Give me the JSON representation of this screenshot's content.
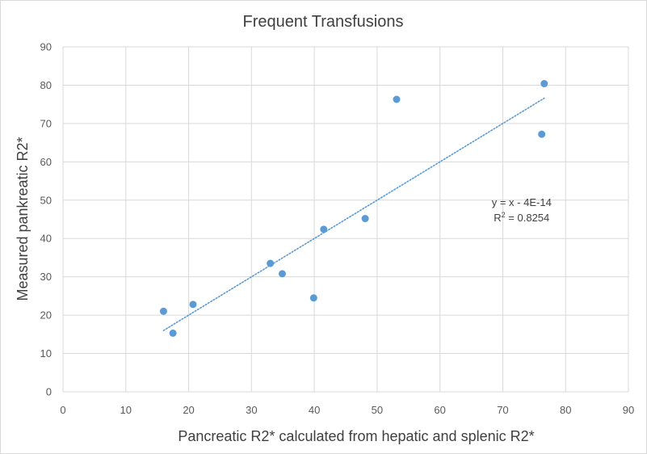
{
  "chart_data": {
    "type": "scatter",
    "title": "Frequent Transfusions",
    "xlabel": "Pancreatic R2* calculated from hepatic and splenic R2*",
    "ylabel": "Measured pankreatic R2*",
    "xlim": [
      0,
      90
    ],
    "ylim": [
      0,
      90
    ],
    "x_ticks": [
      "0",
      "10",
      "20",
      "30",
      "40",
      "50",
      "60",
      "70",
      "80",
      "90"
    ],
    "y_ticks": [
      "0",
      "10",
      "20",
      "30",
      "40",
      "50",
      "60",
      "70",
      "80",
      "90"
    ],
    "grid": true,
    "series": [
      {
        "name": "Frequent Transfusions",
        "color": "#5B9BD5",
        "points": [
          {
            "x": 16.0,
            "y": 21.0
          },
          {
            "x": 17.5,
            "y": 15.3
          },
          {
            "x": 20.7,
            "y": 22.8
          },
          {
            "x": 33.0,
            "y": 33.5
          },
          {
            "x": 34.9,
            "y": 30.8
          },
          {
            "x": 39.9,
            "y": 24.5
          },
          {
            "x": 41.5,
            "y": 42.4
          },
          {
            "x": 48.1,
            "y": 45.2
          },
          {
            "x": 53.1,
            "y": 76.3
          },
          {
            "x": 76.2,
            "y": 67.2
          },
          {
            "x": 76.6,
            "y": 80.4
          }
        ]
      }
    ],
    "trendline": {
      "type": "linear",
      "style": "dotted",
      "color": "#5B9BD5",
      "x_start": 16.0,
      "x_end": 76.6,
      "slope": 1,
      "intercept": 0,
      "equation_label": "y = x - 4E-14",
      "r2_label_prefix": "R",
      "r2_label_sup": "2",
      "r2_label_suffix": " = 0.8254"
    },
    "annotation_anchor": {
      "x": 73.0,
      "y": 44.5
    }
  }
}
